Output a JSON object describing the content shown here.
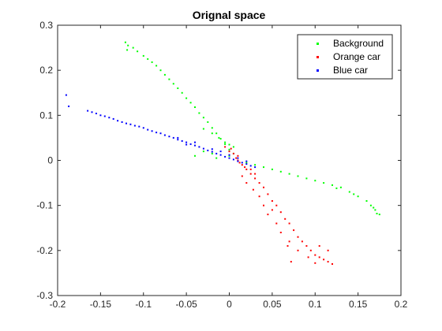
{
  "chart_data": {
    "type": "scatter",
    "title": "Orignal space",
    "xlabel": "",
    "ylabel": "",
    "xlim": [
      -0.2,
      0.2
    ],
    "ylim": [
      -0.3,
      0.3
    ],
    "xticks": [
      -0.2,
      -0.15,
      -0.1,
      -0.05,
      0,
      0.05,
      0.1,
      0.15,
      0.2
    ],
    "xtick_labels": [
      "-0.2",
      "-0.15",
      "-0.1",
      "-0.05",
      "0",
      "0.05",
      "0.1",
      "0.15",
      "0.2"
    ],
    "yticks": [
      -0.3,
      -0.2,
      -0.1,
      0,
      0.1,
      0.2,
      0.3
    ],
    "ytick_labels": [
      "-0.3",
      "-0.2",
      "-0.1",
      "0",
      "0.1",
      "0.2",
      "0.3"
    ],
    "grid": false,
    "legend_position": "top-right",
    "series": [
      {
        "name": "Background",
        "color": "#00ff00",
        "points": [
          [
            -0.121,
            0.262
          ],
          [
            -0.118,
            0.255
          ],
          [
            -0.119,
            0.245
          ],
          [
            -0.112,
            0.25
          ],
          [
            -0.107,
            0.242
          ],
          [
            -0.1,
            0.232
          ],
          [
            -0.095,
            0.225
          ],
          [
            -0.09,
            0.218
          ],
          [
            -0.085,
            0.21
          ],
          [
            -0.08,
            0.2
          ],
          [
            -0.075,
            0.19
          ],
          [
            -0.07,
            0.18
          ],
          [
            -0.065,
            0.17
          ],
          [
            -0.06,
            0.16
          ],
          [
            -0.055,
            0.15
          ],
          [
            -0.05,
            0.138
          ],
          [
            -0.045,
            0.128
          ],
          [
            -0.04,
            0.118
          ],
          [
            -0.035,
            0.105
          ],
          [
            -0.03,
            0.095
          ],
          [
            -0.025,
            0.085
          ],
          [
            -0.02,
            0.072
          ],
          [
            -0.015,
            0.06
          ],
          [
            -0.01,
            0.048
          ],
          [
            -0.005,
            0.036
          ],
          [
            0.0,
            0.024
          ],
          [
            0.005,
            0.015
          ],
          [
            -0.03,
            0.07
          ],
          [
            -0.02,
            0.06
          ],
          [
            -0.012,
            0.05
          ],
          [
            -0.005,
            0.04
          ],
          [
            0.0,
            0.035
          ],
          [
            0.005,
            0.03
          ],
          [
            -0.03,
            0.02
          ],
          [
            -0.02,
            0.015
          ],
          [
            -0.04,
            0.01
          ],
          [
            -0.015,
            0.005
          ],
          [
            0.0,
            0.01
          ],
          [
            0.02,
            -0.005
          ],
          [
            0.03,
            -0.01
          ],
          [
            0.04,
            -0.015
          ],
          [
            0.05,
            -0.02
          ],
          [
            0.06,
            -0.025
          ],
          [
            0.07,
            -0.03
          ],
          [
            0.08,
            -0.035
          ],
          [
            0.09,
            -0.04
          ],
          [
            0.1,
            -0.045
          ],
          [
            0.11,
            -0.05
          ],
          [
            0.12,
            -0.055
          ],
          [
            0.13,
            -0.06
          ],
          [
            0.14,
            -0.07
          ],
          [
            0.15,
            -0.08
          ],
          [
            0.16,
            -0.09
          ],
          [
            0.165,
            -0.1
          ],
          [
            0.17,
            -0.11
          ],
          [
            0.175,
            -0.12
          ],
          [
            0.172,
            -0.118
          ],
          [
            0.168,
            -0.105
          ],
          [
            0.145,
            -0.075
          ],
          [
            0.125,
            -0.062
          ]
        ]
      },
      {
        "name": "Orange car",
        "color": "#ff0000",
        "points": [
          [
            -0.005,
            0.03
          ],
          [
            0.0,
            0.02
          ],
          [
            0.002,
            0.026
          ],
          [
            0.005,
            0.015
          ],
          [
            0.008,
            0.005
          ],
          [
            0.01,
            0.0
          ],
          [
            0.012,
            -0.005
          ],
          [
            0.015,
            -0.01
          ],
          [
            0.018,
            -0.015
          ],
          [
            0.02,
            -0.02
          ],
          [
            0.025,
            -0.03
          ],
          [
            0.03,
            -0.04
          ],
          [
            0.035,
            -0.05
          ],
          [
            0.04,
            -0.06
          ],
          [
            0.045,
            -0.075
          ],
          [
            0.05,
            -0.09
          ],
          [
            0.055,
            -0.1
          ],
          [
            0.06,
            -0.115
          ],
          [
            0.065,
            -0.13
          ],
          [
            0.07,
            -0.14
          ],
          [
            0.075,
            -0.155
          ],
          [
            0.08,
            -0.17
          ],
          [
            0.085,
            -0.18
          ],
          [
            0.09,
            -0.19
          ],
          [
            0.095,
            -0.2
          ],
          [
            0.1,
            -0.21
          ],
          [
            0.105,
            -0.215
          ],
          [
            0.11,
            -0.22
          ],
          [
            0.115,
            -0.225
          ],
          [
            0.12,
            -0.23
          ],
          [
            0.1,
            -0.228
          ],
          [
            0.092,
            -0.215
          ],
          [
            0.08,
            -0.2
          ],
          [
            0.07,
            -0.18
          ],
          [
            0.06,
            -0.16
          ],
          [
            0.055,
            -0.14
          ],
          [
            0.045,
            -0.12
          ],
          [
            0.04,
            -0.1
          ],
          [
            0.035,
            -0.08
          ],
          [
            0.028,
            -0.065
          ],
          [
            0.02,
            -0.05
          ],
          [
            0.015,
            -0.035
          ],
          [
            0.072,
            -0.225
          ],
          [
            0.068,
            -0.19
          ],
          [
            0.05,
            -0.11
          ],
          [
            0.025,
            -0.02
          ],
          [
            0.01,
            0.01
          ],
          [
            0.03,
            -0.03
          ],
          [
            0.115,
            -0.2
          ],
          [
            0.105,
            -0.19
          ]
        ]
      },
      {
        "name": "Blue car",
        "color": "#0000ff",
        "points": [
          [
            -0.19,
            0.145
          ],
          [
            -0.187,
            0.12
          ],
          [
            -0.165,
            0.11
          ],
          [
            -0.16,
            0.107
          ],
          [
            -0.155,
            0.104
          ],
          [
            -0.15,
            0.1
          ],
          [
            -0.145,
            0.098
          ],
          [
            -0.14,
            0.095
          ],
          [
            -0.135,
            0.092
          ],
          [
            -0.13,
            0.088
          ],
          [
            -0.125,
            0.085
          ],
          [
            -0.12,
            0.082
          ],
          [
            -0.115,
            0.08
          ],
          [
            -0.11,
            0.077
          ],
          [
            -0.105,
            0.075
          ],
          [
            -0.1,
            0.072
          ],
          [
            -0.095,
            0.068
          ],
          [
            -0.09,
            0.065
          ],
          [
            -0.085,
            0.062
          ],
          [
            -0.08,
            0.06
          ],
          [
            -0.075,
            0.056
          ],
          [
            -0.07,
            0.053
          ],
          [
            -0.065,
            0.05
          ],
          [
            -0.06,
            0.046
          ],
          [
            -0.055,
            0.043
          ],
          [
            -0.05,
            0.04
          ],
          [
            -0.045,
            0.036
          ],
          [
            -0.04,
            0.033
          ],
          [
            -0.035,
            0.03
          ],
          [
            -0.03,
            0.026
          ],
          [
            -0.025,
            0.022
          ],
          [
            -0.02,
            0.019
          ],
          [
            -0.015,
            0.015
          ],
          [
            -0.01,
            0.012
          ],
          [
            -0.005,
            0.008
          ],
          [
            0.0,
            0.005
          ],
          [
            0.005,
            0.002
          ],
          [
            0.01,
            -0.002
          ],
          [
            0.015,
            -0.005
          ],
          [
            0.02,
            -0.008
          ],
          [
            0.025,
            -0.012
          ],
          [
            0.03,
            -0.015
          ],
          [
            -0.02,
            0.025
          ],
          [
            -0.01,
            0.02
          ],
          [
            0.0,
            0.012
          ],
          [
            0.01,
            0.005
          ],
          [
            0.02,
            -0.002
          ],
          [
            -0.06,
            0.05
          ],
          [
            -0.05,
            0.035
          ],
          [
            -0.04,
            0.04
          ]
        ]
      }
    ]
  }
}
